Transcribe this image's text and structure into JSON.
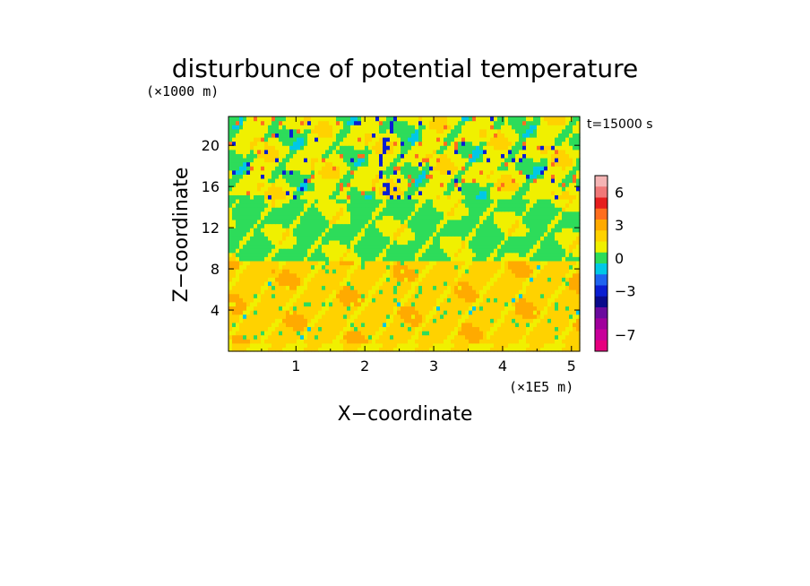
{
  "chart_data": {
    "type": "heatmap",
    "title": "disturbunce of potential temperature",
    "xlabel": "X−coordinate",
    "ylabel": "Z−coordinate",
    "x_units": "(×1E5 m)",
    "y_units": "(×1000 m)",
    "time_label": "t=15000 s",
    "x_range": [
      0.02,
      5.12
    ],
    "y_range": [
      0,
      22.8
    ],
    "x_ticks": [
      "1",
      "2",
      "3",
      "4",
      "5"
    ],
    "y_ticks": [
      "4",
      "8",
      "12",
      "16",
      "20"
    ],
    "colorbar": {
      "ticks": [
        "6",
        "3",
        "0",
        "−3",
        "−7"
      ],
      "levels_low_to_high": [
        {
          "value": -8,
          "color": "#e6007e"
        },
        {
          "value": -7,
          "color": "#c8009a"
        },
        {
          "value": -6,
          "color": "#a0009c"
        },
        {
          "value": -5,
          "color": "#6a0a9e"
        },
        {
          "value": -4,
          "color": "#0a0a8c"
        },
        {
          "value": -3,
          "color": "#0a1ed2"
        },
        {
          "value": -2,
          "color": "#1e64f0"
        },
        {
          "value": -1,
          "color": "#00c8e6"
        },
        {
          "value": 0,
          "color": "#2ddc5a"
        },
        {
          "value": 1,
          "color": "#f0f000"
        },
        {
          "value": 2,
          "color": "#ffd200"
        },
        {
          "value": 3,
          "color": "#ffaa00"
        },
        {
          "value": 4,
          "color": "#ff6e1e"
        },
        {
          "value": 5,
          "color": "#e61e1e"
        },
        {
          "value": 6,
          "color": "#f07878"
        },
        {
          "value": 7,
          "color": "#f5b4b4"
        }
      ]
    },
    "field_description_by_height": [
      {
        "z": [
          0,
          1
        ],
        "value": 1
      },
      {
        "z": [
          1,
          9
        ],
        "value": 2
      },
      {
        "z": [
          9,
          15
        ],
        "value": 0
      },
      {
        "z": [
          15,
          22.8
        ],
        "value": 1
      }
    ],
    "grid": false,
    "legend": "right"
  }
}
